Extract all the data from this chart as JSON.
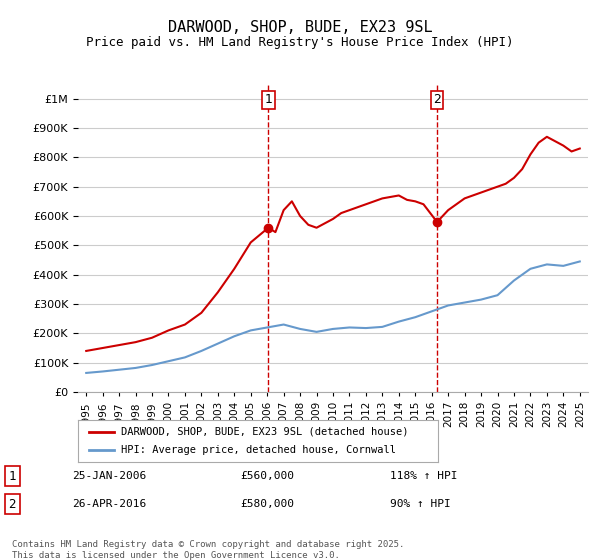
{
  "title": "DARWOOD, SHOP, BUDE, EX23 9SL",
  "subtitle": "Price paid vs. HM Land Registry's House Price Index (HPI)",
  "footer": "Contains HM Land Registry data © Crown copyright and database right 2025.\nThis data is licensed under the Open Government Licence v3.0.",
  "legend_line1": "DARWOOD, SHOP, BUDE, EX23 9SL (detached house)",
  "legend_line2": "HPI: Average price, detached house, Cornwall",
  "annotation1_label": "1",
  "annotation1_date": "25-JAN-2006",
  "annotation1_price": "£560,000",
  "annotation1_hpi": "118% ↑ HPI",
  "annotation2_label": "2",
  "annotation2_date": "26-APR-2016",
  "annotation2_price": "£580,000",
  "annotation2_hpi": "90% ↑ HPI",
  "vline1_x": 2006.07,
  "vline2_x": 2016.32,
  "marker1_x": 2006.07,
  "marker1_y": 560000,
  "marker2_x": 2016.32,
  "marker2_y": 580000,
  "red_color": "#cc0000",
  "blue_color": "#6699cc",
  "background_color": "#ffffff",
  "grid_color": "#cccccc",
  "ylim": [
    0,
    1050000
  ],
  "xlim": [
    1994.5,
    2025.5
  ],
  "hpi_line": {
    "x": [
      1995,
      1996,
      1997,
      1998,
      1999,
      2000,
      2001,
      2002,
      2003,
      2004,
      2005,
      2006,
      2007,
      2008,
      2009,
      2010,
      2011,
      2012,
      2013,
      2014,
      2015,
      2016,
      2017,
      2018,
      2019,
      2020,
      2021,
      2022,
      2023,
      2024,
      2025
    ],
    "y": [
      65000,
      70000,
      76000,
      82000,
      92000,
      105000,
      118000,
      140000,
      165000,
      190000,
      210000,
      220000,
      230000,
      215000,
      205000,
      215000,
      220000,
      218000,
      222000,
      240000,
      255000,
      275000,
      295000,
      305000,
      315000,
      330000,
      380000,
      420000,
      435000,
      430000,
      445000
    ]
  },
  "price_line": {
    "x": [
      1995,
      1996,
      1997,
      1998,
      1999,
      2000,
      2001,
      2002,
      2003,
      2004,
      2005,
      2006.07,
      2006.5,
      2007,
      2007.5,
      2008,
      2008.5,
      2009,
      2009.5,
      2010,
      2010.5,
      2011,
      2011.5,
      2012,
      2012.5,
      2013,
      2013.5,
      2014,
      2014.5,
      2015,
      2015.5,
      2016.32,
      2016.5,
      2017,
      2017.5,
      2018,
      2018.5,
      2019,
      2019.5,
      2020,
      2020.5,
      2021,
      2021.5,
      2022,
      2022.5,
      2023,
      2023.5,
      2024,
      2024.5,
      2025
    ],
    "y": [
      140000,
      150000,
      160000,
      170000,
      185000,
      210000,
      230000,
      270000,
      340000,
      420000,
      510000,
      560000,
      545000,
      620000,
      650000,
      600000,
      570000,
      560000,
      575000,
      590000,
      610000,
      620000,
      630000,
      640000,
      650000,
      660000,
      665000,
      670000,
      655000,
      650000,
      640000,
      580000,
      590000,
      620000,
      640000,
      660000,
      670000,
      680000,
      690000,
      700000,
      710000,
      730000,
      760000,
      810000,
      850000,
      870000,
      855000,
      840000,
      820000,
      830000
    ]
  }
}
